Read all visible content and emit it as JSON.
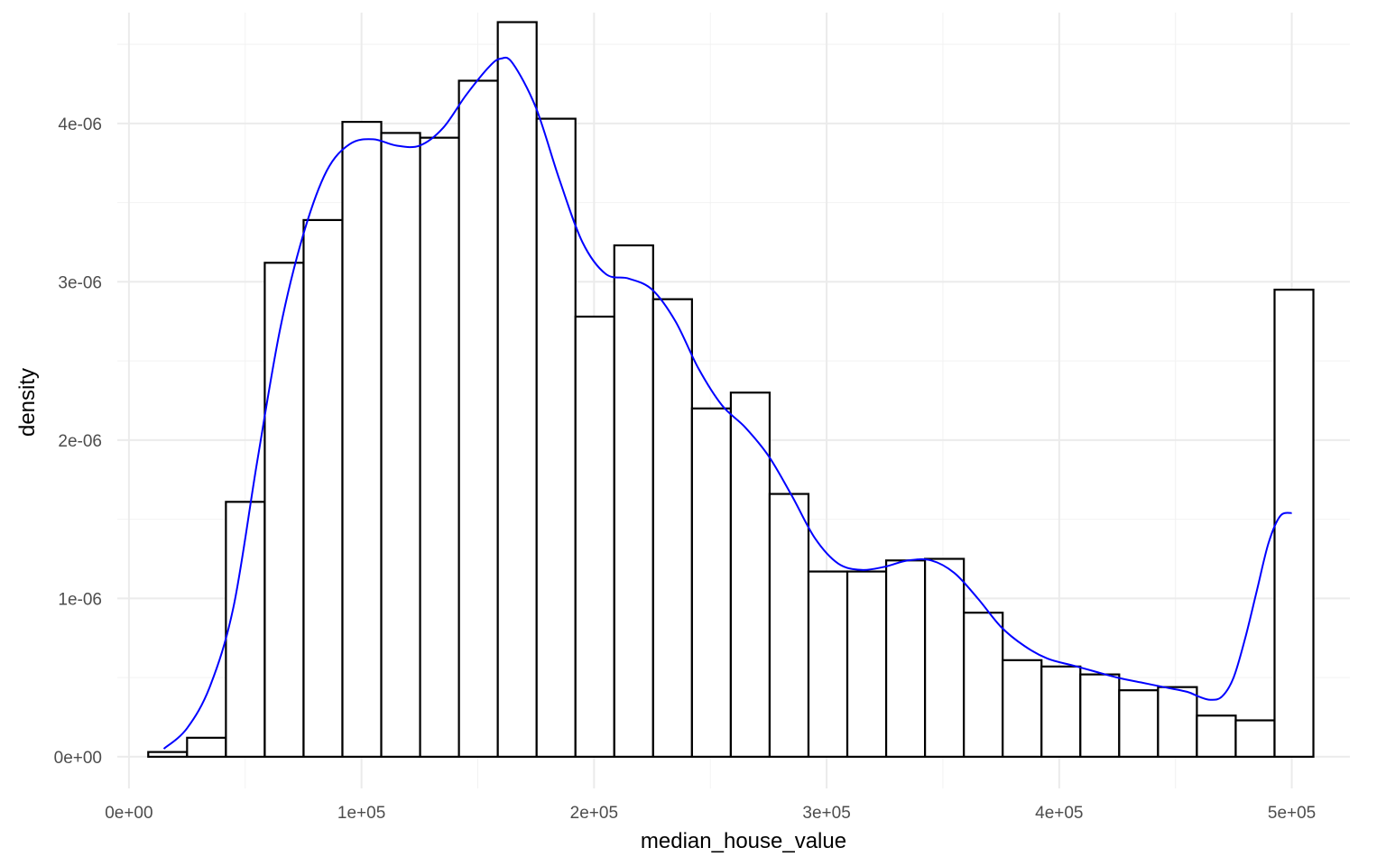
{
  "chart_data": {
    "type": "bar",
    "subtype": "histogram with density curve",
    "xlabel": "median_house_value",
    "ylabel": "density",
    "xlim": [
      -5000,
      525000
    ],
    "ylim": [
      -2e-07,
      4.7e-06
    ],
    "x_ticks": [
      0,
      100000,
      200000,
      300000,
      400000,
      500000
    ],
    "x_tick_labels": [
      "0e+00",
      "1e+05",
      "2e+05",
      "3e+05",
      "4e+05",
      "5e+05"
    ],
    "y_ticks": [
      0,
      1e-06,
      2e-06,
      3e-06,
      4e-06
    ],
    "y_tick_labels": [
      "0e+00",
      "1e-06",
      "2e-06",
      "3e-06",
      "4e-06"
    ],
    "grid": true,
    "bins": {
      "start": 8300,
      "width": 16700,
      "values": [
        3e-08,
        1.2e-07,
        1.61e-06,
        3.12e-06,
        3.39e-06,
        4.01e-06,
        3.94e-06,
        3.91e-06,
        4.27e-06,
        4.64e-06,
        4.03e-06,
        2.78e-06,
        3.23e-06,
        2.89e-06,
        2.2e-06,
        2.3e-06,
        1.66e-06,
        1.17e-06,
        1.17e-06,
        1.24e-06,
        1.25e-06,
        9.1e-07,
        6.1e-07,
        5.7e-07,
        5.2e-07,
        4.2e-07,
        4.4e-07,
        2.6e-07,
        2.3e-07,
        2.95e-06
      ]
    },
    "bar_color": "#ffffff",
    "bar_outline": "#000000",
    "density_color": "#0000ff",
    "density_curve": {
      "x": [
        15000,
        25000,
        35000,
        45000,
        55000,
        65000,
        75000,
        85000,
        95000,
        105000,
        115000,
        125000,
        135000,
        145000,
        155000,
        160000,
        165000,
        175000,
        185000,
        195000,
        205000,
        215000,
        225000,
        235000,
        245000,
        255000,
        265000,
        275000,
        285000,
        295000,
        305000,
        315000,
        325000,
        335000,
        345000,
        355000,
        365000,
        375000,
        385000,
        395000,
        405000,
        415000,
        425000,
        435000,
        445000,
        455000,
        460000,
        465000,
        470000,
        475000,
        480000,
        485000,
        490000,
        495000,
        500000
      ],
      "y": [
        5e-08,
        1.8e-07,
        4.5e-07,
        9.5e-07,
        1.85e-06,
        2.7e-06,
        3.3e-06,
        3.7e-06,
        3.87e-06,
        3.9e-06,
        3.86e-06,
        3.86e-06,
        3.97e-06,
        4.18e-06,
        4.36e-06,
        4.41e-06,
        4.38e-06,
        4.1e-06,
        3.65e-06,
        3.25e-06,
        3.05e-06,
        3.02e-06,
        2.95e-06,
        2.75e-06,
        2.45e-06,
        2.22e-06,
        2.08e-06,
        1.9e-06,
        1.65e-06,
        1.38e-06,
        1.22e-06,
        1.18e-06,
        1.2e-06,
        1.24e-06,
        1.24e-06,
        1.16e-06,
        1e-06,
        8.2e-07,
        7e-07,
        6.2e-07,
        5.8e-07,
        5.4e-07,
        5e-07,
        4.7e-07,
        4.4e-07,
        4.1e-07,
        3.8e-07,
        3.6e-07,
        3.8e-07,
        5e-07,
        7.5e-07,
        1.05e-06,
        1.35e-06,
        1.52e-06,
        1.54e-06
      ]
    }
  }
}
